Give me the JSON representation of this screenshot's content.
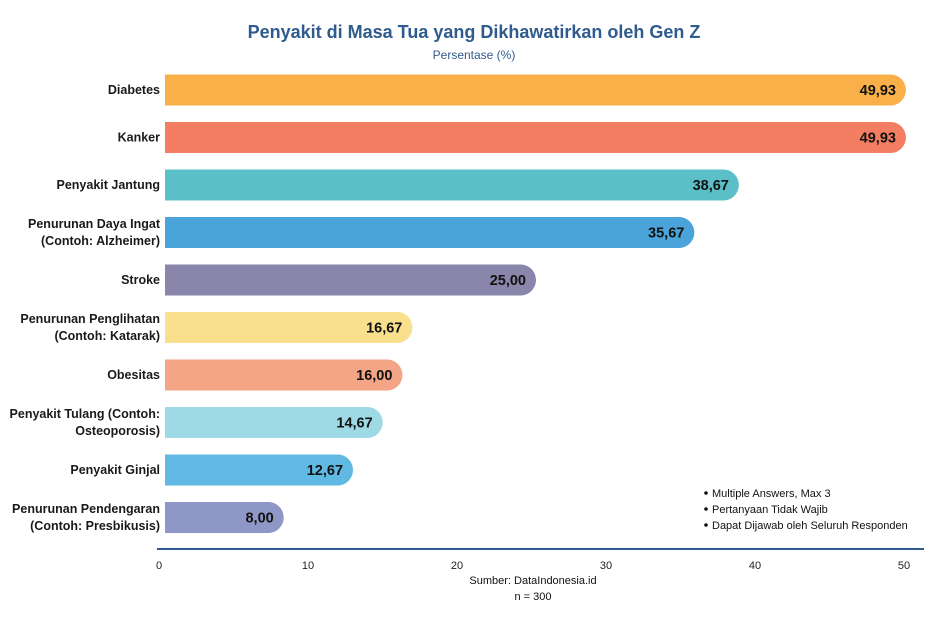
{
  "chart_data": {
    "type": "bar",
    "orientation": "horizontal",
    "title": "Penyakit di Masa Tua yang Dikhawatirkan oleh Gen Z",
    "subtitle": "Persentase (%)",
    "categories": [
      [
        "Diabetes"
      ],
      [
        "Kanker"
      ],
      [
        "Penyakit Jantung"
      ],
      [
        "Penurunan Daya Ingat",
        "(Contoh: Alzheimer)"
      ],
      [
        "Stroke"
      ],
      [
        "Penurunan Penglihatan",
        "(Contoh: Katarak)"
      ],
      [
        "Obesitas"
      ],
      [
        "Penyakit Tulang (Contoh:",
        "Osteoporosis)"
      ],
      [
        "Penyakit Ginjal"
      ],
      [
        "Penurunan Pendengaran",
        "(Contoh: Presbikusis)"
      ]
    ],
    "values": [
      49.93,
      49.93,
      38.67,
      35.67,
      25.0,
      16.67,
      16.0,
      14.67,
      12.67,
      8.0
    ],
    "value_labels": [
      "49,93",
      "49,93",
      "38,67",
      "35,67",
      "25,00",
      "16,67",
      "16,00",
      "14,67",
      "12,67",
      "8,00"
    ],
    "colors": [
      "#f9b049",
      "#f37e62",
      "#5bbfc7",
      "#4aa3d9",
      "#8a86ab",
      "#f8e08c",
      "#f3a585",
      "#9ed9e6",
      "#5fb9e3",
      "#8f97c6"
    ],
    "xlim": [
      0,
      50
    ],
    "xticks": [
      0,
      10,
      20,
      30,
      40,
      50
    ],
    "xtick_labels": [
      "0",
      "10",
      "20",
      "30",
      "40",
      "50"
    ],
    "axis_color": "#2f5b8e",
    "grid": false,
    "notes": [
      "Multiple Answers, Max 3",
      "Pertanyaan Tidak Wajib",
      "Dapat Dijawab oleh Seluruh Responden"
    ],
    "source": "Sumber: DataIndonesia.id",
    "sample": "n = 300"
  }
}
